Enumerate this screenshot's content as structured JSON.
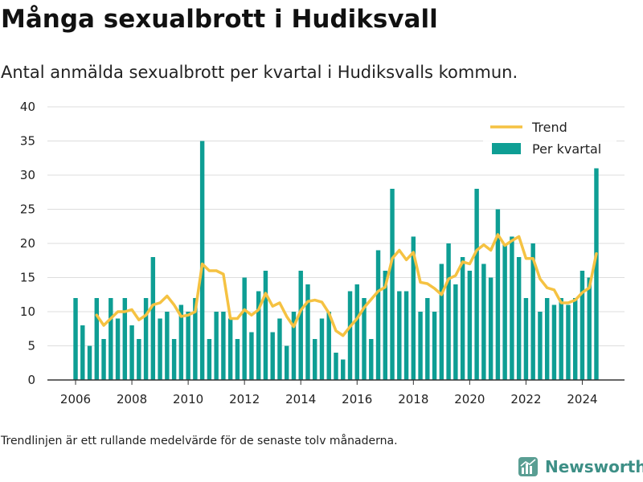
{
  "header": {
    "title": "Många sexualbrott i Hudiksvall",
    "subtitle": "Antal anmälda sexualbrott per kvartal i Hudiksvalls kommun."
  },
  "footer": {
    "note": "Trendlinjen är ett rullande medelvärde för de senaste tolv månaderna.",
    "brand": "Newsworthy"
  },
  "colors": {
    "bar": "#0e9e94",
    "trend": "#f5c242",
    "grid": "#dddddd",
    "axis": "#333333",
    "brand": "#3d8f86"
  },
  "chart_data": {
    "type": "bar",
    "title": "Antal anmälda sexualbrott per kvartal i Hudiksvalls kommun.",
    "xlim": [
      2005,
      2025.5
    ],
    "ylim": [
      0,
      40
    ],
    "x_ticks": [
      2006,
      2008,
      2010,
      2012,
      2014,
      2016,
      2018,
      2020,
      2022,
      2024
    ],
    "y_ticks": [
      0,
      5,
      10,
      15,
      20,
      25,
      30,
      35,
      40
    ],
    "grid": true,
    "legend_position": "top-right",
    "legend": [
      {
        "label": "Trend",
        "kind": "line",
        "color": "#f5c242"
      },
      {
        "label": "Per kvartal",
        "kind": "bar",
        "color": "#0e9e94"
      }
    ],
    "series": [
      {
        "name": "Per kvartal",
        "kind": "bar",
        "start_year": 2006,
        "values": [
          12,
          8,
          5,
          12,
          6,
          12,
          9,
          12,
          8,
          6,
          12,
          18,
          9,
          10,
          6,
          11,
          10,
          12,
          35,
          6,
          10,
          10,
          9,
          6,
          15,
          7,
          13,
          16,
          7,
          9,
          5,
          10,
          16,
          14,
          6,
          9,
          10,
          4,
          3,
          13,
          14,
          12,
          6,
          19,
          16,
          28,
          13,
          13,
          21,
          10,
          12,
          10,
          17,
          20,
          14,
          18,
          16,
          28,
          17,
          15,
          25,
          20,
          21,
          18,
          12,
          20,
          10,
          12,
          11,
          12,
          11,
          12,
          16,
          15,
          31
        ]
      },
      {
        "name": "Trend",
        "kind": "line",
        "x": [
          2006.75,
          2007,
          2007.25,
          2007.5,
          2007.75,
          2008,
          2008.25,
          2008.5,
          2008.75,
          2009,
          2009.25,
          2009.5,
          2009.75,
          2010,
          2010.25,
          2010.5,
          2010.75,
          2011,
          2011.25,
          2011.5,
          2011.75,
          2012,
          2012.25,
          2012.5,
          2012.75,
          2013,
          2013.25,
          2013.5,
          2013.75,
          2014,
          2014.25,
          2014.5,
          2014.75,
          2015,
          2015.25,
          2015.5,
          2015.75,
          2016,
          2016.25,
          2016.5,
          2016.75,
          2017,
          2017.25,
          2017.5,
          2017.75,
          2018,
          2018.25,
          2018.5,
          2018.75,
          2019,
          2019.25,
          2019.5,
          2019.75,
          2020,
          2020.25,
          2020.5,
          2020.75,
          2021,
          2021.25,
          2021.5,
          2021.75,
          2022,
          2022.25,
          2022.5,
          2022.75,
          2023,
          2023.25,
          2023.5,
          2023.75,
          2024,
          2024.25,
          2024.5
        ],
        "values": [
          9.5,
          8,
          9,
          10,
          10,
          10.3,
          8.8,
          9.5,
          11,
          11.3,
          12.3,
          11,
          9.3,
          9.5,
          10,
          17,
          16,
          16,
          15.5,
          9,
          9,
          10.3,
          9.5,
          10.3,
          12.7,
          10.8,
          11.3,
          9.3,
          7.8,
          10.2,
          11.5,
          11.7,
          11.4,
          9.8,
          7.2,
          6.5,
          7.8,
          9,
          10.6,
          11.8,
          13,
          13.6,
          17.8,
          19,
          17.6,
          18.7,
          14.3,
          14.1,
          13.4,
          12.5,
          14.8,
          15.3,
          17.3,
          17,
          19,
          19.8,
          19,
          21.3,
          19.7,
          20.4,
          21,
          17.8,
          17.8,
          14.8,
          13.5,
          13.2,
          11.3,
          11.3,
          11.7,
          12.8,
          13.5,
          18.5
        ]
      }
    ]
  }
}
